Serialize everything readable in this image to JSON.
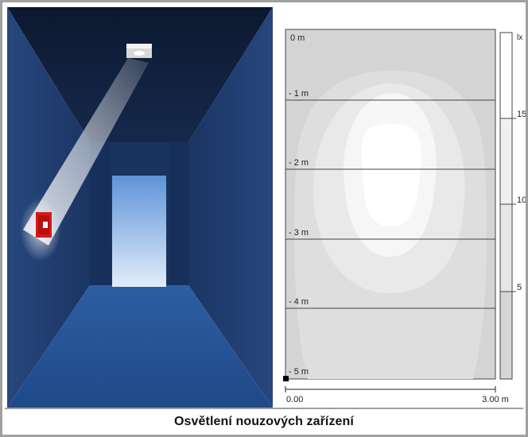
{
  "scene": {
    "icons": [
      "ceiling-luminaire-icon",
      "fire-extinguisher-icon",
      "doorway-icon"
    ],
    "colors": {
      "wall_dark": "#12213d",
      "wall_mid": "#1d3966",
      "floor": "#2c5a9c",
      "door_top": "#5b8fd4",
      "door_bottom": "#d9e7f7",
      "extinguisher": "#d81919"
    }
  },
  "plot": {
    "y_labels": [
      "0 m",
      "- 1 m",
      "- 2 m",
      "- 3 m",
      "- 4 m",
      "- 5 m"
    ],
    "x_labels": [
      "0.00",
      "3.00 m"
    ],
    "legend_unit": "lx",
    "legend_ticks": [
      "15",
      "10",
      "5"
    ],
    "colors": {
      "background": "#d4d4d4",
      "band_5": "#dedede",
      "band_10": "#e9e9e9",
      "band_15": "#f6f6f6",
      "band_max": "#ffffff"
    }
  },
  "chart_data": {
    "type": "heatmap",
    "x_range": [
      0.0,
      3.0
    ],
    "y_range": [
      -5.0,
      0.0
    ],
    "legend_unit": "lx",
    "legend_levels": [
      5,
      10,
      15
    ]
  },
  "caption": "Osvětlení nouzových zařízení"
}
